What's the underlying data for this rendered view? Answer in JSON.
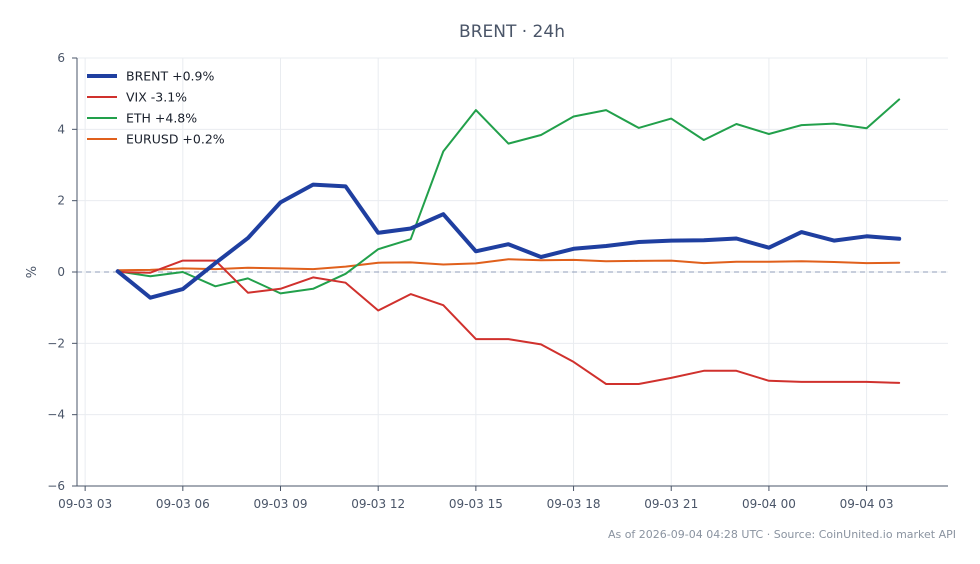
{
  "chart_data": {
    "type": "line",
    "title": "BRENT · 24h",
    "ylabel": "%",
    "xlabel": "",
    "ylim": [
      -6,
      6
    ],
    "yticks": [
      -6,
      -4,
      -2,
      0,
      2,
      4,
      6
    ],
    "ytick_labels": [
      "−6",
      "−4",
      "−2",
      "0",
      "2",
      "4",
      "6"
    ],
    "xlim": [
      "09-03 02:45",
      "09-04 05:30"
    ],
    "xticks": [
      "09-03 03:00",
      "09-03 06:00",
      "09-03 09:00",
      "09-03 12:00",
      "09-03 15:00",
      "09-03 18:00",
      "09-03 21:00",
      "09-04 00:00",
      "09-04 03:00"
    ],
    "xtick_labels": [
      "09-03 03",
      "09-03 06",
      "09-03 09",
      "09-03 12",
      "09-03 15",
      "09-03 18",
      "09-03 21",
      "09-04 00",
      "09-04 03"
    ],
    "x": [
      "09-03 04:00",
      "09-03 05:00",
      "09-03 06:00",
      "09-03 07:00",
      "09-03 08:00",
      "09-03 09:00",
      "09-03 10:00",
      "09-03 11:00",
      "09-03 12:00",
      "09-03 13:00",
      "09-03 14:00",
      "09-03 15:00",
      "09-03 16:00",
      "09-03 17:00",
      "09-03 18:00",
      "09-03 19:00",
      "09-03 20:00",
      "09-03 21:00",
      "09-03 22:00",
      "09-03 23:00",
      "09-04 00:00",
      "09-04 01:00",
      "09-04 02:00",
      "09-04 03:00",
      "09-04 04:00"
    ],
    "zero_line": true,
    "grid": true,
    "legend": "top-left",
    "series": [
      {
        "name": "BRENT +0.9%",
        "color": "#1f3fa0",
        "width": 4,
        "values": [
          0.02,
          -0.72,
          -0.48,
          0.25,
          0.95,
          1.95,
          2.45,
          2.4,
          1.1,
          1.22,
          1.62,
          0.58,
          0.78,
          0.42,
          0.65,
          0.73,
          0.84,
          0.88,
          0.89,
          0.94,
          0.68,
          1.12,
          0.88,
          1.0,
          0.93
        ]
      },
      {
        "name": "VIX -3.1%",
        "color": "#d0312d",
        "width": 2,
        "values": [
          0.0,
          -0.02,
          0.32,
          0.32,
          -0.58,
          -0.47,
          -0.15,
          -0.3,
          -1.08,
          -0.62,
          -0.93,
          -1.88,
          -1.88,
          -2.03,
          -2.52,
          -3.14,
          -3.14,
          -2.97,
          -2.77,
          -2.77,
          -3.05,
          -3.08,
          -3.08,
          -3.08,
          -3.11
        ]
      },
      {
        "name": "ETH +4.8%",
        "color": "#22a04b",
        "width": 2,
        "values": [
          0.02,
          -0.12,
          0.0,
          -0.4,
          -0.18,
          -0.6,
          -0.47,
          -0.05,
          0.64,
          0.92,
          3.38,
          4.54,
          3.6,
          3.84,
          4.36,
          4.54,
          4.04,
          4.3,
          3.7,
          4.15,
          3.87,
          4.12,
          4.16,
          4.03,
          4.84
        ]
      },
      {
        "name": "EURUSD +0.2%",
        "color": "#e0601c",
        "width": 2,
        "values": [
          0.05,
          0.06,
          0.1,
          0.08,
          0.12,
          0.1,
          0.08,
          0.15,
          0.26,
          0.27,
          0.21,
          0.24,
          0.36,
          0.33,
          0.34,
          0.3,
          0.31,
          0.32,
          0.25,
          0.29,
          0.29,
          0.3,
          0.28,
          0.25,
          0.26
        ]
      }
    ],
    "footer": "As of 2026-09-04 04:28 UTC · Source: CoinUnited.io market API"
  }
}
